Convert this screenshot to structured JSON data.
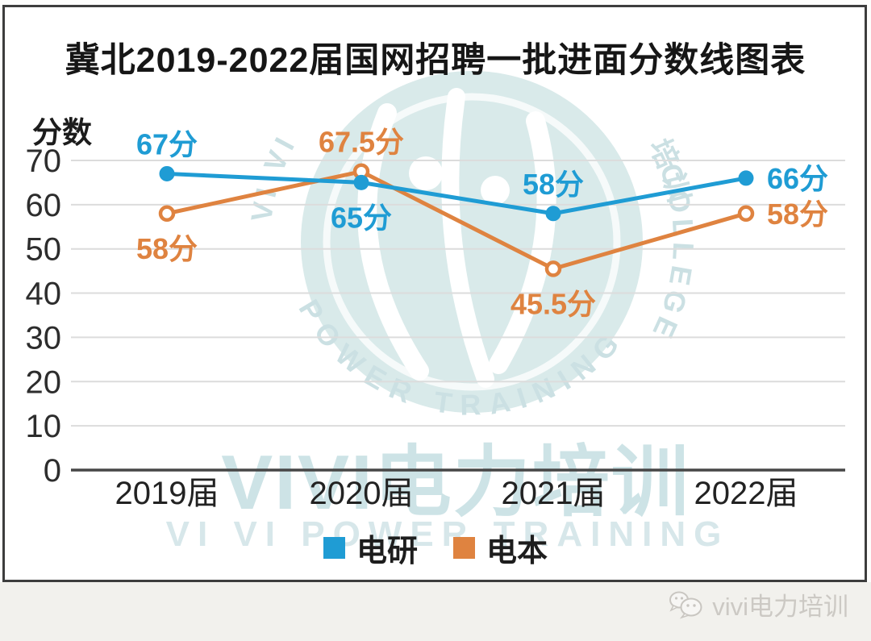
{
  "title": "冀北2019-2022届国网招聘一批进面分数线图表",
  "watermark": {
    "ring_top": "VI VI",
    "ring_top_right": "培训",
    "ring_bottom": "POWER TRAINING",
    "ring_right": "COLLEGE",
    "big_cn": "VIVI电力培训",
    "big_en": "VI VI POWER TRAINING"
  },
  "footer": {
    "brand": "vivi电力培训",
    "icon": "wechat-icon"
  },
  "chart_data": {
    "type": "line",
    "title": "冀北2019-2022届国网招聘一批进面分数线图表",
    "xlabel": "",
    "ylabel": "分数",
    "categories": [
      "2019届",
      "2020届",
      "2021届",
      "2022届"
    ],
    "y_ticks": [
      0,
      10,
      20,
      30,
      40,
      50,
      60,
      70
    ],
    "ylim": [
      0,
      70
    ],
    "grid": true,
    "legend_position": "bottom",
    "series": [
      {
        "name": "电研",
        "color": "#1F9CD4",
        "marker": "filled-circle",
        "values": [
          67,
          65,
          58,
          66
        ],
        "point_labels": [
          "67分",
          "65分",
          "58分",
          "66分"
        ],
        "label_positions": [
          "above",
          "below",
          "above",
          "right"
        ]
      },
      {
        "name": "电本",
        "color": "#DF8340",
        "marker": "open-circle",
        "values": [
          58,
          67.5,
          45.5,
          58
        ],
        "point_labels": [
          "58分",
          "67.5分",
          "45.5分",
          "58分"
        ],
        "label_positions": [
          "below",
          "above",
          "below",
          "right"
        ]
      }
    ]
  }
}
